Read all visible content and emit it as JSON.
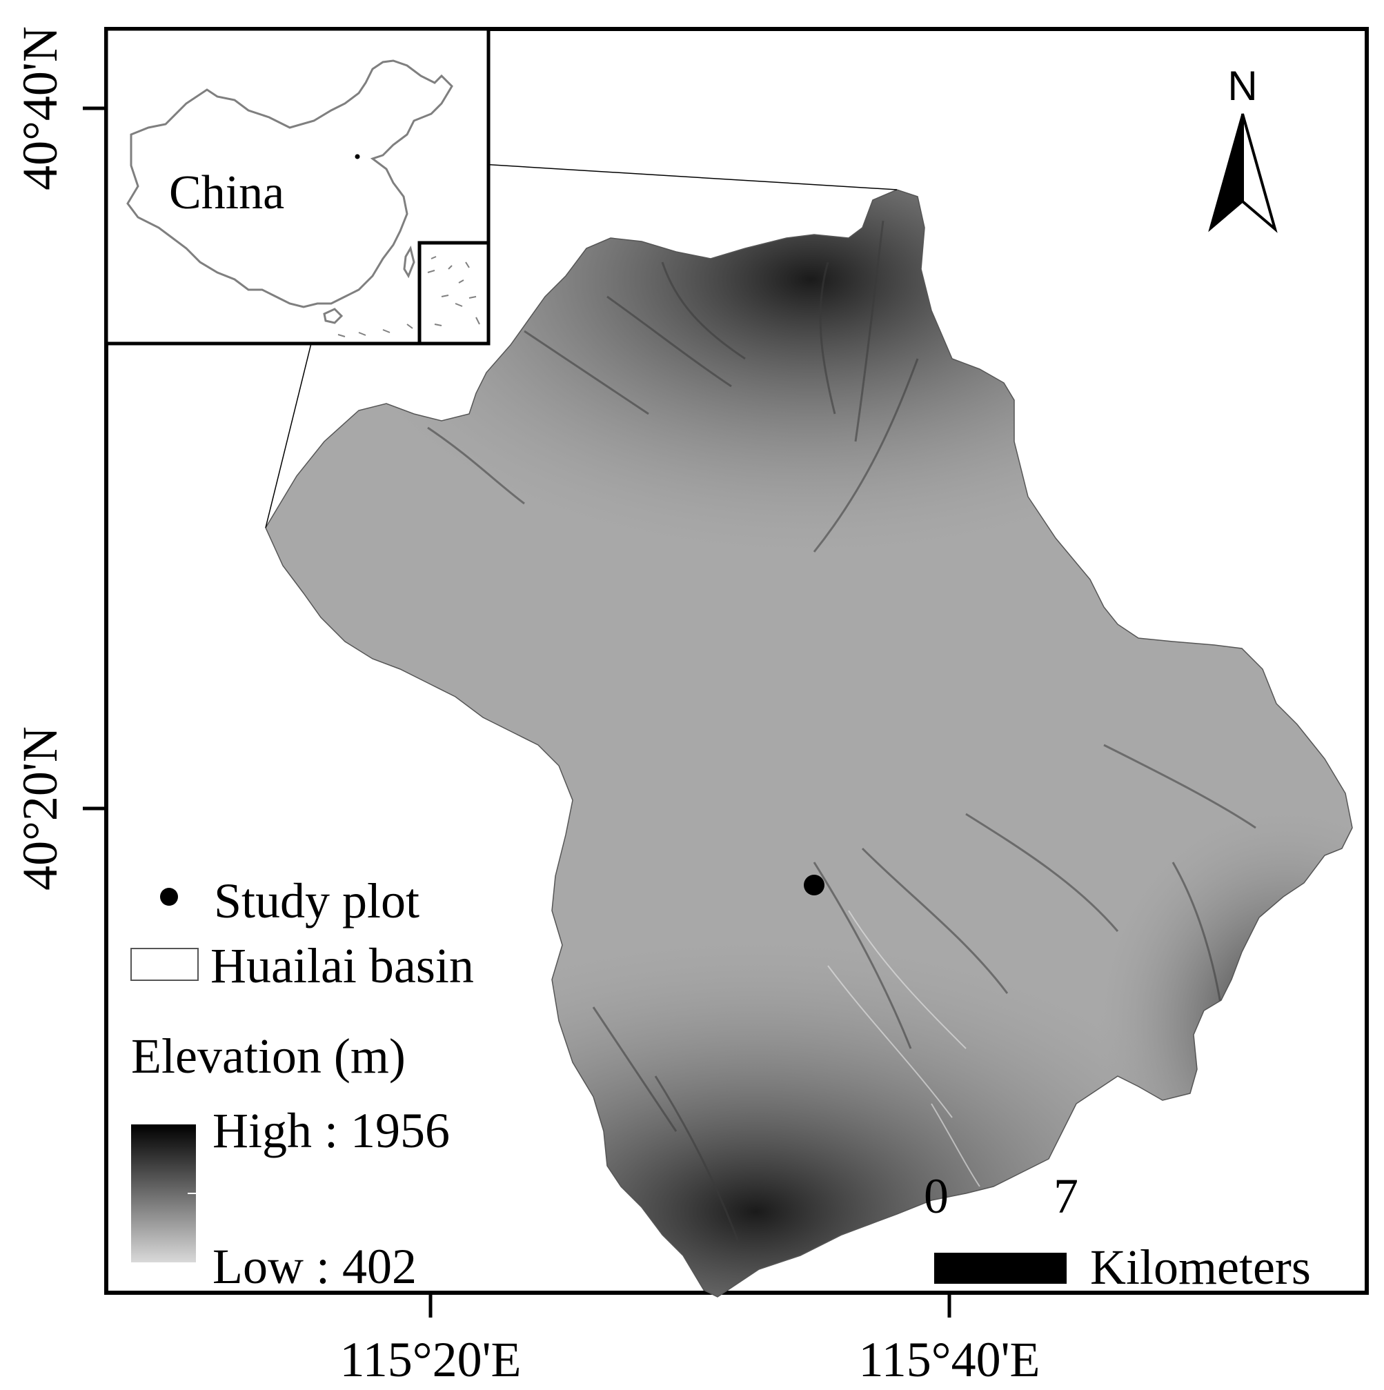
{
  "map": {
    "axes": {
      "y_ticks": [
        "40°40'N",
        "40°20'N"
      ],
      "x_ticks": [
        "115°20'E",
        "115°40'E"
      ]
    },
    "inset": {
      "label": "China"
    },
    "north_arrow": {
      "label": "N"
    },
    "legend": {
      "study_plot_label": "Study plot",
      "basin_label": "Huailai basin",
      "elevation_title": "Elevation (m)",
      "high_label": "High : 1956",
      "low_label": "Low : 402",
      "high_value": 1956,
      "low_value": 402
    },
    "scale_bar": {
      "tick_start": "0",
      "tick_end": "7",
      "unit": "Kilometers"
    },
    "colors": {
      "ramp_high": "#000000",
      "ramp_low": "#d9d9d9",
      "frame": "#000000",
      "inset_outline": "#7f7f7f"
    }
  }
}
